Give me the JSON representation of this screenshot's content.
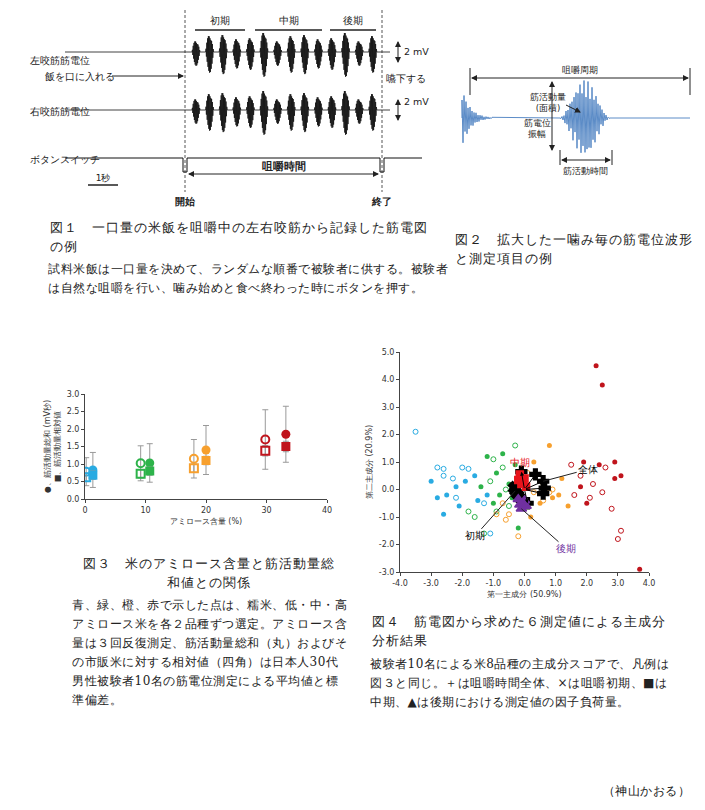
{
  "figure1": {
    "stages": [
      "初期",
      "中期",
      "後期"
    ],
    "left": "左咬筋筋電位",
    "right": "右咬筋筋電位",
    "scales": [
      "2 mV",
      "2 mV"
    ],
    "put_in": "飯を口に入れる",
    "swallow": "嚥下する",
    "button": "ボタンスイッチ",
    "time_scale": "1秒",
    "chewing_time": "咀嚼時間",
    "start": "開始",
    "end": "終了",
    "caption": "図１　一口量の米飯を咀嚼中の左右咬筋から記録した筋電図の例",
    "note": "試料米飯は一口量を決めて、ランダムな順番で被験者に供する。被験者は自然な咀嚼を行い、噛み始めと食べ終わった時にボタンを押す。"
  },
  "figure2": {
    "cycle": "咀嚼周期",
    "activity": [
      "筋活動量",
      "(面積)"
    ],
    "amplitude": [
      "筋電位",
      "振幅"
    ],
    "duration": "筋活動時間",
    "caption": "図２　拡大した一噛み毎の筋電位波形と測定項目の例"
  },
  "chart_data": [
    {
      "type": "scatter",
      "x_label": "アミロース含量 (%)",
      "y_label": [
        "●、筋活動量総和 (mV秒)",
        "■、筋活動量相対値"
      ],
      "xlim": [
        0,
        40
      ],
      "xticks": [
        0,
        10,
        20,
        30,
        40
      ],
      "ylim": [
        0,
        3
      ],
      "yticks": [
        {
          "value": 0,
          "label": "0.0"
        },
        0.5,
        {
          "value": 1,
          "label": "1.0"
        },
        1.5,
        {
          "value": 2,
          "label": "2.0"
        },
        2.5,
        {
          "value": 3,
          "label": "3.0"
        }
      ],
      "grid": false,
      "series": [
        {
          "color": "#29abe2",
          "marker": "circle-open",
          "x": [
            0.2
          ],
          "values": [
            0.78
          ],
          "error": [
            0.4
          ]
        },
        {
          "color": "#29abe2",
          "marker": "circle",
          "x": [
            1.3
          ],
          "values": [
            0.83
          ],
          "error": [
            0.5
          ]
        },
        {
          "color": "#29abe2",
          "marker": "square-open",
          "x": [
            0.2
          ],
          "values": [
            0.62
          ],
          "error": [
            0.12
          ]
        },
        {
          "color": "#29abe2",
          "marker": "square",
          "x": [
            1.3
          ],
          "values": [
            0.68
          ],
          "error": [
            0.12
          ]
        },
        {
          "color": "#2db34a",
          "marker": "circle-open",
          "x": [
            9.2
          ],
          "values": [
            1.02
          ],
          "error": [
            0.5
          ]
        },
        {
          "color": "#2db34a",
          "marker": "circle",
          "x": [
            10.7
          ],
          "values": [
            1.03
          ],
          "error": [
            0.55
          ]
        },
        {
          "color": "#2db34a",
          "marker": "square-open",
          "x": [
            9.2
          ],
          "values": [
            0.72
          ],
          "error": [
            0.12
          ]
        },
        {
          "color": "#2db34a",
          "marker": "square",
          "x": [
            10.7
          ],
          "values": [
            0.8
          ],
          "error": [
            0.12
          ]
        },
        {
          "color": "#f7a02e",
          "marker": "circle-open",
          "x": [
            18.0
          ],
          "values": [
            1.15
          ],
          "error": [
            0.55
          ]
        },
        {
          "color": "#f7a02e",
          "marker": "circle",
          "x": [
            20.0
          ],
          "values": [
            1.4
          ],
          "error": [
            0.7
          ]
        },
        {
          "color": "#f7a02e",
          "marker": "square-open",
          "x": [
            18.0
          ],
          "values": [
            0.88
          ],
          "error": [
            0.12
          ]
        },
        {
          "color": "#f7a02e",
          "marker": "square",
          "x": [
            20.0
          ],
          "values": [
            1.1
          ],
          "error": [
            0.12
          ]
        },
        {
          "color": "#c0141c",
          "marker": "circle-open",
          "x": [
            29.8
          ],
          "values": [
            1.7
          ],
          "error": [
            0.85
          ]
        },
        {
          "color": "#c0141c",
          "marker": "circle",
          "x": [
            33.2
          ],
          "values": [
            1.85
          ],
          "error": [
            0.8
          ]
        },
        {
          "color": "#c0141c",
          "marker": "square-open",
          "x": [
            29.8
          ],
          "values": [
            1.38
          ],
          "error": [
            0.15
          ]
        },
        {
          "color": "#c0141c",
          "marker": "square",
          "x": [
            33.2
          ],
          "values": [
            1.5
          ],
          "error": [
            0.15
          ]
        }
      ],
      "caption": "図３　米のアミロース含量と筋活動量総和値との関係",
      "note": "青、緑、橙、赤で示した点は、糯米、低・中・高アミロース米を各２品種ずつ選定。アミロース含量は３回反復測定、筋活動量総和（丸）およびその市販米に対する相対値（四角）は日本人30代男性被験者10名の筋電位測定による平均値と標準偏差。"
    },
    {
      "type": "scatter",
      "x_label": "第一主成分 (50.9%)",
      "y_label": "第二主成分 (20.9%)",
      "xlim": [
        -4,
        4
      ],
      "xticks": [
        {
          "value": -4,
          "label": "-4.0"
        },
        {
          "value": -3,
          "label": "-3.0"
        },
        {
          "value": -2,
          "label": "-2.0"
        },
        {
          "value": -1,
          "label": "-1.0"
        },
        {
          "value": 0,
          "label": "0.0"
        },
        {
          "value": 1,
          "label": "1.0"
        },
        {
          "value": 2,
          "label": "2.0"
        },
        {
          "value": 3,
          "label": "3.0"
        },
        {
          "value": 4,
          "label": "4.0"
        }
      ],
      "ylim": [
        -3,
        5
      ],
      "yticks": [
        {
          "value": -3,
          "label": "-3.0"
        },
        {
          "value": -2,
          "label": "-2.0"
        },
        {
          "value": -1,
          "label": "-1.0"
        },
        {
          "value": 0,
          "label": "0.0"
        },
        {
          "value": 1,
          "label": "1.0"
        },
        {
          "value": 2,
          "label": "2.0"
        },
        {
          "value": 3,
          "label": "3.0"
        },
        {
          "value": 4,
          "label": "4.0"
        },
        {
          "value": 5,
          "label": "5.0"
        }
      ],
      "grid": false,
      "series": [
        {
          "color": "#29abe2",
          "marker": "circle-open",
          "x": [
            -3.5,
            -2.8,
            -2.6,
            -2.3,
            -2.0,
            -1.8,
            -1.3,
            -2.2,
            -1.1,
            -2.6
          ],
          "values": [
            2.1,
            0.8,
            0.5,
            0.4,
            0.8,
            0.75,
            -0.5,
            -0.3,
            -1.6,
            0.75
          ]
        },
        {
          "color": "#29abe2",
          "marker": "circle",
          "x": [
            -3.0,
            -2.8,
            -2.5,
            -2.1,
            -1.9,
            -1.5,
            -2.6,
            -1.2,
            -1.6,
            -2.2
          ],
          "values": [
            0.3,
            -0.3,
            -0.2,
            -0.6,
            0.3,
            -0.4,
            -0.9,
            -0.2,
            0.5,
            0.1
          ]
        },
        {
          "color": "#2db34a",
          "marker": "circle-open",
          "x": [
            -1.0,
            -0.7,
            -1.3,
            -0.9,
            -1.6,
            -0.5,
            -1.1,
            -0.3,
            -1.8,
            -0.6
          ],
          "values": [
            1.1,
            0.8,
            -1.6,
            -0.8,
            -1.0,
            -0.6,
            0.3,
            1.6,
            -0.8,
            0.0
          ]
        },
        {
          "color": "#2db34a",
          "marker": "circle",
          "x": [
            -1.2,
            -0.7,
            -0.9,
            -0.5,
            -0.4,
            -0.8,
            -1.0,
            -0.3,
            -1.4,
            -0.2
          ],
          "values": [
            1.2,
            1.3,
            0.6,
            0.2,
            -0.3,
            -0.2,
            -0.5,
            0.9,
            0.1,
            -1.4
          ]
        },
        {
          "color": "#f7a02e",
          "marker": "circle-open",
          "x": [
            -0.9,
            -0.6,
            -0.2,
            0.3,
            0.6,
            0.8,
            -0.5,
            0.1,
            -0.7,
            0.9
          ],
          "values": [
            -0.9,
            -1.1,
            -1.7,
            -0.1,
            -0.4,
            -0.1,
            -0.9,
            0.6,
            -0.5,
            0.0
          ]
        },
        {
          "color": "#f7a02e",
          "marker": "circle",
          "x": [
            0.8,
            0.3,
            0.5,
            0.9,
            1.1,
            1.4,
            0.2,
            0.6,
            1.2,
            -0.1
          ],
          "values": [
            1.6,
            1.0,
            -0.5,
            -0.3,
            -0.2,
            -0.6,
            -1.0,
            0.2,
            0.4,
            0.3
          ]
        },
        {
          "color": "#c0141c",
          "marker": "circle-open",
          "x": [
            1.5,
            1.8,
            2.2,
            2.5,
            2.1,
            2.8,
            3.1,
            3.0,
            2.6,
            1.6
          ],
          "values": [
            0.9,
            0.5,
            0.2,
            -0.1,
            -0.3,
            -0.7,
            -1.5,
            -1.8,
            0.8,
            -0.2
          ]
        },
        {
          "color": "#c0141c",
          "marker": "circle",
          "x": [
            2.3,
            2.5,
            3.7,
            1.9,
            1.8,
            2.4,
            2.9,
            3.1,
            2.9,
            2.0
          ],
          "values": [
            4.5,
            3.8,
            -2.9,
            1.0,
            0.1,
            0.9,
            1.0,
            0.5,
            0.4,
            -0.5
          ]
        }
      ],
      "loadings": [
        {
          "label": "全体",
          "marker": "cross",
          "color": "#000000",
          "line_style": "arrow",
          "x": [
            0.6,
            0.65,
            0.6,
            0.35,
            -0.1,
            0.1
          ],
          "values": [
            0.3,
            0.05,
            -0.15,
            0.55,
            0.65,
            -0.5
          ]
        },
        {
          "label": "初期",
          "marker": "x",
          "color": "#000000",
          "x": [
            -0.3,
            -0.25,
            -0.35,
            -0.2,
            -0.3,
            -0.15
          ],
          "values": [
            -0.05,
            -0.15,
            0.05,
            -0.2,
            0.1,
            -0.3
          ]
        },
        {
          "label": "中期",
          "marker": "square",
          "color": "#e8141c",
          "x": [
            -0.15,
            0.0,
            -0.1,
            -0.2,
            0.05,
            -0.05
          ],
          "values": [
            0.55,
            0.4,
            0.2,
            0.35,
            0.1,
            0.3
          ]
        },
        {
          "label": "後期",
          "marker": "triangle-up",
          "color": "#7030a0",
          "x": [
            -0.1,
            -0.05,
            -0.15,
            0.0,
            -0.2,
            0.05
          ],
          "values": [
            -0.7,
            -0.5,
            -0.55,
            -0.4,
            -0.35,
            -0.6
          ]
        }
      ],
      "caption": "図４　筋電図から求めた６測定値による主成分分析結果",
      "note": "被験者10名による米8品種の主成分スコアで、凡例は図３と同じ。＋は咀嚼時間全体、×は咀嚼初期、■は中期、▲は後期における測定値の因子負荷量。"
    }
  ],
  "author": "（神山かおる）"
}
